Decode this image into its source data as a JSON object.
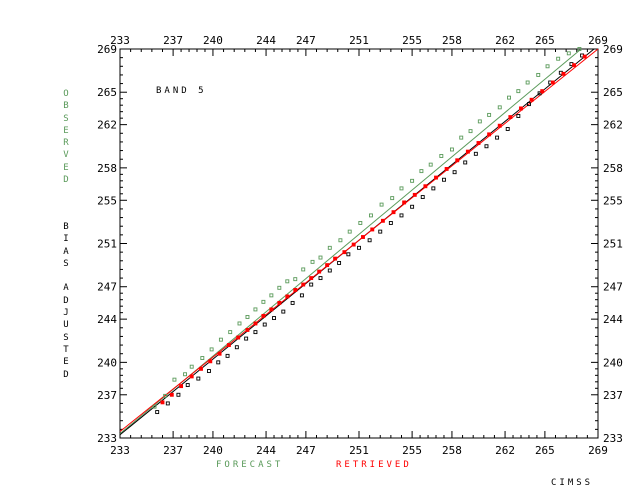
{
  "colors": {
    "forecast": "#5a9a5a",
    "retrieved": "#ff0000",
    "observed": "#000000",
    "axis": "#000000"
  },
  "labels": {
    "band": "BAND 5",
    "observed": "OBSERVED",
    "bias_adjusted": "BIAS ADJUSTED",
    "forecast": "FORECAST",
    "retrieved": "RETRIEVED",
    "credit": "CIMSS"
  },
  "chart_data": {
    "type": "scatter",
    "title": "BAND 5",
    "xlabel": "",
    "ylabel": "",
    "xlim": [
      233,
      269
    ],
    "ylim": [
      233,
      269
    ],
    "x_ticks": [
      233,
      237,
      240,
      244,
      247,
      251,
      255,
      258,
      262,
      265,
      269
    ],
    "y_ticks": [
      233,
      237,
      240,
      244,
      247,
      251,
      255,
      258,
      262,
      265,
      269
    ],
    "legend": "bottom",
    "grid": false,
    "series": [
      {
        "name": "FORECAST",
        "color": "#5a9a5a",
        "marker": "square",
        "fit_line": [
          [
            233.0,
            233.4
          ],
          [
            269.0,
            270.3
          ]
        ],
        "points": [
          [
            235.6,
            235.9
          ],
          [
            236.4,
            236.9
          ],
          [
            237.1,
            238.4
          ],
          [
            237.9,
            238.9
          ],
          [
            238.4,
            239.6
          ],
          [
            239.2,
            240.4
          ],
          [
            239.9,
            241.2
          ],
          [
            240.6,
            242.1
          ],
          [
            241.3,
            242.8
          ],
          [
            242.0,
            243.6
          ],
          [
            242.6,
            244.2
          ],
          [
            243.2,
            244.9
          ],
          [
            243.8,
            245.6
          ],
          [
            244.4,
            246.2
          ],
          [
            245.0,
            246.9
          ],
          [
            245.6,
            247.5
          ],
          [
            246.2,
            247.7
          ],
          [
            246.8,
            248.6
          ],
          [
            247.5,
            249.3
          ],
          [
            248.1,
            249.7
          ],
          [
            248.8,
            250.6
          ],
          [
            249.6,
            251.3
          ],
          [
            250.3,
            252.1
          ],
          [
            251.1,
            252.9
          ],
          [
            251.9,
            253.6
          ],
          [
            252.7,
            254.6
          ],
          [
            253.5,
            255.2
          ],
          [
            254.2,
            256.1
          ],
          [
            255.0,
            256.8
          ],
          [
            255.7,
            257.7
          ],
          [
            256.4,
            258.3
          ],
          [
            257.2,
            259.1
          ],
          [
            258.0,
            259.7
          ],
          [
            258.7,
            260.8
          ],
          [
            259.4,
            261.4
          ],
          [
            260.1,
            262.3
          ],
          [
            260.8,
            262.9
          ],
          [
            261.6,
            263.6
          ],
          [
            262.3,
            264.5
          ],
          [
            263.0,
            265.1
          ],
          [
            263.7,
            265.9
          ],
          [
            264.5,
            266.6
          ],
          [
            265.2,
            267.4
          ],
          [
            266.0,
            268.1
          ],
          [
            266.8,
            268.6
          ],
          [
            267.6,
            269.0
          ]
        ]
      },
      {
        "name": "RETRIEVED",
        "color": "#ff0000",
        "marker": "square",
        "fit_line": [
          [
            233.0,
            233.6
          ],
          [
            269.0,
            269.0
          ]
        ],
        "points": [
          [
            236.2,
            236.3
          ],
          [
            236.9,
            237.0
          ],
          [
            237.6,
            237.8
          ],
          [
            238.4,
            238.7
          ],
          [
            239.1,
            239.4
          ],
          [
            239.8,
            240.1
          ],
          [
            240.5,
            240.8
          ],
          [
            241.2,
            241.6
          ],
          [
            241.9,
            242.3
          ],
          [
            242.6,
            243.0
          ],
          [
            243.2,
            243.6
          ],
          [
            243.8,
            244.3
          ],
          [
            244.4,
            244.9
          ],
          [
            245.0,
            245.5
          ],
          [
            245.6,
            246.1
          ],
          [
            246.2,
            246.7
          ],
          [
            246.8,
            247.2
          ],
          [
            247.4,
            247.8
          ],
          [
            248.0,
            248.4
          ],
          [
            248.6,
            249.0
          ],
          [
            249.2,
            249.6
          ],
          [
            249.9,
            250.2
          ],
          [
            250.6,
            250.9
          ],
          [
            251.3,
            251.6
          ],
          [
            252.0,
            252.3
          ],
          [
            252.8,
            253.1
          ],
          [
            253.6,
            253.9
          ],
          [
            254.4,
            254.8
          ],
          [
            255.2,
            255.5
          ],
          [
            256.0,
            256.3
          ],
          [
            256.8,
            257.1
          ],
          [
            257.6,
            257.9
          ],
          [
            258.4,
            258.7
          ],
          [
            259.2,
            259.5
          ],
          [
            260.0,
            260.3
          ],
          [
            260.8,
            261.1
          ],
          [
            261.6,
            261.9
          ],
          [
            262.4,
            262.7
          ],
          [
            263.2,
            263.5
          ],
          [
            264.0,
            264.3
          ],
          [
            264.8,
            265.1
          ],
          [
            265.6,
            265.9
          ],
          [
            266.4,
            266.7
          ],
          [
            267.2,
            267.5
          ],
          [
            268.0,
            268.3
          ]
        ]
      },
      {
        "name": "OBSERVED",
        "color": "#000000",
        "marker": "square",
        "fit_line": [
          [
            233.0,
            233.3
          ],
          [
            269.0,
            269.3
          ]
        ],
        "points": [
          [
            235.8,
            235.4
          ],
          [
            236.6,
            236.2
          ],
          [
            237.4,
            237.0
          ],
          [
            238.1,
            237.9
          ],
          [
            238.9,
            238.5
          ],
          [
            239.7,
            239.2
          ],
          [
            240.4,
            240.0
          ],
          [
            241.1,
            240.6
          ],
          [
            241.8,
            241.4
          ],
          [
            242.5,
            242.2
          ],
          [
            243.2,
            242.8
          ],
          [
            243.9,
            243.5
          ],
          [
            244.6,
            244.1
          ],
          [
            245.3,
            244.7
          ],
          [
            246.0,
            245.5
          ],
          [
            246.7,
            246.2
          ],
          [
            247.4,
            247.2
          ],
          [
            248.1,
            247.8
          ],
          [
            248.8,
            248.5
          ],
          [
            249.5,
            249.2
          ],
          [
            250.2,
            250.0
          ],
          [
            251.0,
            250.6
          ],
          [
            251.8,
            251.3
          ],
          [
            252.6,
            252.1
          ],
          [
            253.4,
            252.9
          ],
          [
            254.2,
            253.6
          ],
          [
            255.0,
            254.4
          ],
          [
            255.8,
            255.3
          ],
          [
            256.6,
            256.1
          ],
          [
            257.4,
            256.9
          ],
          [
            258.2,
            257.6
          ],
          [
            259.0,
            258.5
          ],
          [
            259.8,
            259.3
          ],
          [
            260.6,
            260.0
          ],
          [
            261.4,
            260.8
          ],
          [
            262.2,
            261.6
          ],
          [
            263.0,
            262.8
          ],
          [
            263.8,
            263.9
          ],
          [
            264.6,
            264.9
          ],
          [
            265.4,
            265.9
          ],
          [
            266.2,
            266.8
          ],
          [
            267.0,
            267.6
          ],
          [
            267.8,
            268.4
          ]
        ]
      }
    ]
  }
}
